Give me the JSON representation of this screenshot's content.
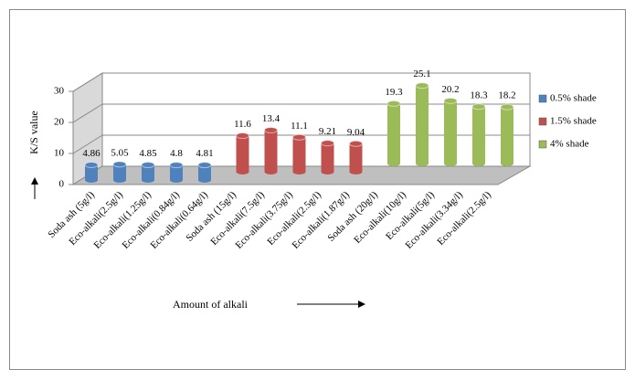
{
  "chart_data": {
    "type": "bar3d",
    "y_label": "K/S value",
    "x_label": "Amount of alkali",
    "categories": [
      "Soda ash (5g/l)",
      "Eco-alkali(2.5g/l)",
      "Eco-alkali(1.25g/l)",
      "Eco-alkali(0.84g/l)",
      "Eco-alkali(0.64g/l)",
      "Soda ash (15g/l)",
      "Eco-alkali(7.5g/l)",
      "Eco-alkali(3.75g/l)",
      "Eco-alkali(2.5g/l)",
      "Eco-alkali(1.87g/l)",
      "Soda ash (20g/l)",
      "Eco-alkali(10g/l)",
      "Eco-alkali(5g/l)",
      "Eco-alkali(3.34g/l)",
      "Eco-alkali(2.5g/l)"
    ],
    "series": [
      {
        "name": "0.5% shade",
        "color": "#4f81bd",
        "values": [
          4.86,
          5.05,
          4.85,
          4.8,
          4.81,
          null,
          null,
          null,
          null,
          null,
          null,
          null,
          null,
          null,
          null
        ]
      },
      {
        "name": "1.5% shade",
        "color": "#c0504d",
        "values": [
          null,
          null,
          null,
          null,
          null,
          11.6,
          13.4,
          11.1,
          9.21,
          9.04,
          null,
          null,
          null,
          null,
          null
        ]
      },
      {
        "name": "4% shade",
        "color": "#9bbb59",
        "values": [
          null,
          null,
          null,
          null,
          null,
          null,
          null,
          null,
          null,
          null,
          19.3,
          25.1,
          20.2,
          18.3,
          18.2
        ]
      }
    ],
    "ylim": [
      0,
      30
    ],
    "yticks": [
      0,
      10,
      20,
      30
    ],
    "grid": true,
    "legend": "right"
  }
}
